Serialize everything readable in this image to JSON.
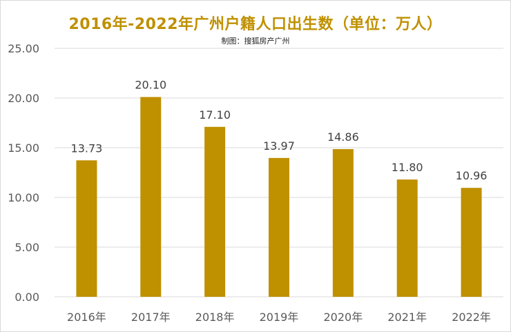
{
  "header": {
    "title": "2016年-2022年广州户籍人口出生数（单位：万人）",
    "subtitle": "制图：搜狐房产广州"
  },
  "colors": {
    "bar": "#bf9000",
    "title": "#bf9000",
    "grid": "#d9d9d9"
  },
  "chart_data": {
    "type": "bar",
    "title": "2016年-2022年广州户籍人口出生数（单位：万人）",
    "subtitle": "制图：搜狐房产广州",
    "categories": [
      "2016年",
      "2017年",
      "2018年",
      "2019年",
      "2020年",
      "2021年",
      "2022年"
    ],
    "values": [
      13.73,
      20.1,
      17.1,
      13.97,
      14.86,
      11.8,
      10.96
    ],
    "value_labels": [
      "13.73",
      "20.10",
      "17.10",
      "13.97",
      "14.86",
      "11.80",
      "10.96"
    ],
    "yticks": [
      "0.00",
      "5.00",
      "10.00",
      "15.00",
      "20.00",
      "25.00"
    ],
    "ylim": [
      0,
      25
    ],
    "grid": true,
    "legend": "none"
  }
}
